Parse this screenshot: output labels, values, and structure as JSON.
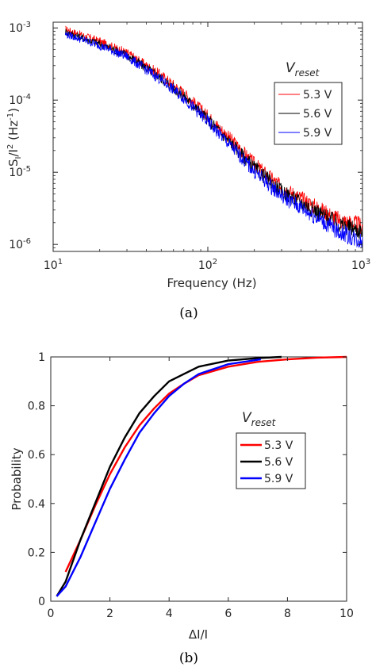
{
  "figure": {
    "caption_a": "(a)",
    "caption_b": "(b)"
  },
  "chart_data": [
    {
      "type": "line",
      "scale": "loglog",
      "xlabel": "Frequency (Hz)",
      "ylabel_base": "S",
      "ylabel_sub": "I",
      "ylabel_mid": "/I",
      "ylabel_sup1": "2",
      "ylabel_unit": " (Hz",
      "ylabel_sup2": "-1",
      "ylabel_close": ")",
      "xlim": [
        10,
        1000
      ],
      "ylim": [
        8e-07,
        0.0012
      ],
      "x_ticks": [
        {
          "value": 10,
          "base": "10",
          "exp": "1"
        },
        {
          "value": 100,
          "base": "10",
          "exp": "2"
        },
        {
          "value": 1000,
          "base": "10",
          "exp": "3"
        }
      ],
      "y_ticks": [
        {
          "value": 0.001,
          "base": "10",
          "exp": "-3"
        },
        {
          "value": 0.0001,
          "base": "10",
          "exp": "-4"
        },
        {
          "value": 1e-05,
          "base": "10",
          "exp": "-5"
        },
        {
          "value": 1e-06,
          "base": "10",
          "exp": "-6"
        }
      ],
      "legend_title_main": "V",
      "legend_title_sub": "reset",
      "legend_position": "top-right",
      "grid": false,
      "series": [
        {
          "name": "5.3 V",
          "color": "#ff0000",
          "points": [
            [
              12,
              0.00096
            ],
            [
              20,
              0.00065
            ],
            [
              30,
              0.00045
            ],
            [
              50,
              0.00022
            ],
            [
              70,
              0.000125
            ],
            [
              100,
              6e-05
            ],
            [
              150,
              2.5e-05
            ],
            [
              200,
              1.3e-05
            ],
            [
              300,
              6.2e-06
            ],
            [
              500,
              3.3e-06
            ],
            [
              700,
              2.2e-06
            ],
            [
              1000,
              1.8e-06
            ]
          ]
        },
        {
          "name": "5.6 V",
          "color": "#000000",
          "points": [
            [
              12,
              0.00088
            ],
            [
              20,
              0.0006
            ],
            [
              30,
              0.00042
            ],
            [
              50,
              0.0002
            ],
            [
              70,
              0.000113
            ],
            [
              100,
              5.4e-05
            ],
            [
              150,
              2.2e-05
            ],
            [
              200,
              1.15e-05
            ],
            [
              300,
              5.4e-06
            ],
            [
              500,
              2.9e-06
            ],
            [
              700,
              1.9e-06
            ],
            [
              1000,
              1.5e-06
            ]
          ]
        },
        {
          "name": "5.9 V",
          "color": "#0000ff",
          "points": [
            [
              12,
              0.00082
            ],
            [
              20,
              0.00057
            ],
            [
              30,
              0.0004
            ],
            [
              50,
              0.00019
            ],
            [
              70,
              0.000106
            ],
            [
              100,
              5e-05
            ],
            [
              150,
              2e-05
            ],
            [
              200,
              1.02e-05
            ],
            [
              300,
              4.7e-06
            ],
            [
              500,
              2.4e-06
            ],
            [
              700,
              1.5e-06
            ],
            [
              1000,
              1.1e-06
            ]
          ]
        }
      ]
    },
    {
      "type": "line",
      "xlabel": "ΔI/I",
      "ylabel": "Probability",
      "xlim": [
        0,
        10
      ],
      "ylim": [
        0,
        1
      ],
      "x_ticks": [
        "0",
        "2",
        "4",
        "6",
        "8",
        "10"
      ],
      "y_ticks": [
        "0",
        "0.2",
        "0.4",
        "0.6",
        "0.8",
        "1"
      ],
      "legend_title_main": "V",
      "legend_title_sub": "reset",
      "legend_position": "center-right",
      "grid": false,
      "series": [
        {
          "name": "5.3 V",
          "color": "#ff0000",
          "points": [
            [
              0.5,
              0.12
            ],
            [
              1,
              0.25
            ],
            [
              1.5,
              0.39
            ],
            [
              2,
              0.52
            ],
            [
              2.5,
              0.63
            ],
            [
              3,
              0.72
            ],
            [
              3.5,
              0.79
            ],
            [
              4,
              0.85
            ],
            [
              4.5,
              0.89
            ],
            [
              5,
              0.925
            ],
            [
              6,
              0.96
            ],
            [
              7,
              0.98
            ],
            [
              8,
              0.99
            ],
            [
              9,
              0.997
            ],
            [
              10,
              1.0
            ]
          ]
        },
        {
          "name": "5.6 V",
          "color": "#000000",
          "points": [
            [
              0.2,
              0.02
            ],
            [
              0.5,
              0.08
            ],
            [
              1,
              0.25
            ],
            [
              1.5,
              0.4
            ],
            [
              2,
              0.55
            ],
            [
              2.5,
              0.67
            ],
            [
              3,
              0.77
            ],
            [
              3.5,
              0.84
            ],
            [
              4,
              0.9
            ],
            [
              4.5,
              0.93
            ],
            [
              5,
              0.96
            ],
            [
              6,
              0.985
            ],
            [
              7,
              0.995
            ],
            [
              7.8,
              1.0
            ]
          ]
        },
        {
          "name": "5.9 V",
          "color": "#0000ff",
          "points": [
            [
              0.2,
              0.02
            ],
            [
              0.5,
              0.06
            ],
            [
              1,
              0.18
            ],
            [
              1.5,
              0.32
            ],
            [
              2,
              0.46
            ],
            [
              2.5,
              0.58
            ],
            [
              3,
              0.69
            ],
            [
              3.5,
              0.77
            ],
            [
              4,
              0.84
            ],
            [
              4.5,
              0.89
            ],
            [
              5,
              0.93
            ],
            [
              6,
              0.97
            ],
            [
              7.1,
              0.99
            ]
          ]
        }
      ]
    }
  ]
}
